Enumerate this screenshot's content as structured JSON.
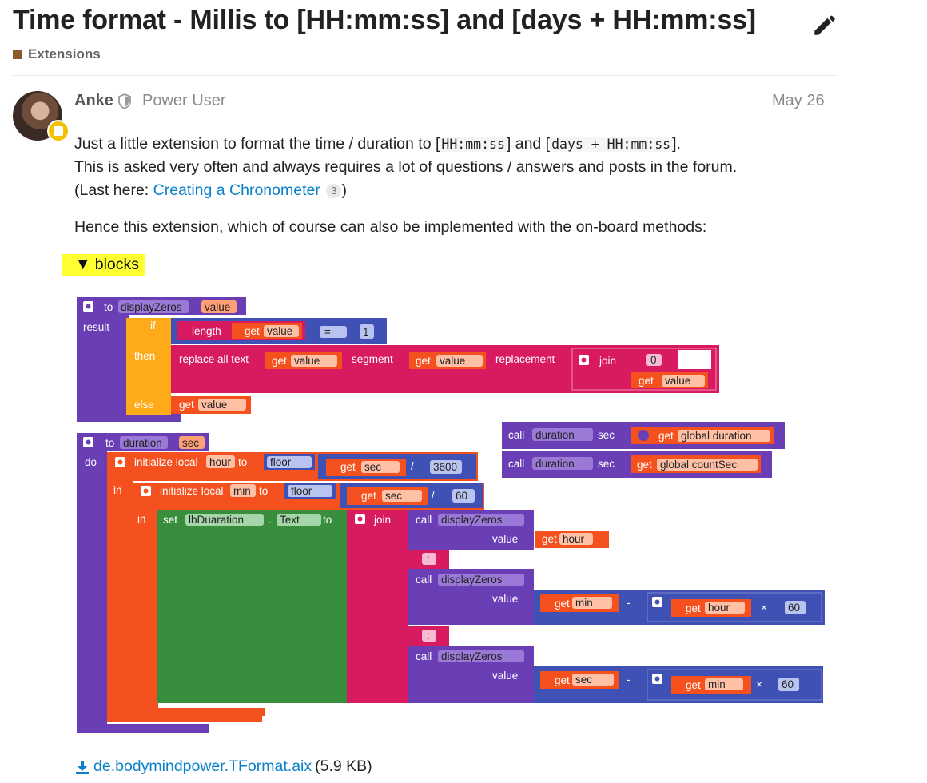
{
  "topic": {
    "title": "Time format - Millis to [HH:mm:ss] and [days + HH:mm:ss]",
    "category": "Extensions"
  },
  "post": {
    "author": "Anke",
    "role": "Power User",
    "date": "May 26",
    "intro_1": "Just a little extension to format the time / duration to [",
    "code_1": "HH:mm:ss",
    "intro_2": "] and [",
    "code_2": "days + HH:mm:ss",
    "intro_3": "].",
    "line_2": "This is asked very often and always requires a lot of questions / answers and posts in the forum.",
    "line_3_pre": "(Last here: ",
    "link_text": "Creating a Chronometer",
    "link_badge": "3",
    "line_3_post": ")",
    "para_2": "Hence this extension, which of course can also be implemented with the on-board methods:",
    "details_summary": "▼  blocks",
    "attachment_name": "de.bodymindpower.TFormat.aix",
    "attachment_size": "(5.9 KB)"
  },
  "blocks": {
    "to": "to",
    "result": "result",
    "if": "if",
    "then": "then",
    "else": "else",
    "do": "do",
    "in": "in",
    "get": "get",
    "call": "call",
    "join": "join",
    "set": "set",
    "floor": "floor",
    "length": "length",
    "segment": "segment",
    "replacement": "replacement",
    "replace_all_text": "replace all text",
    "initialize_local": "initialize local",
    "sec_label": "sec",
    "value_label": "value",
    "dot": ".",
    "display_zeros": "displayZeros",
    "duration": "duration",
    "param_value": "value",
    "param_sec": "sec",
    "var_hour": "hour",
    "var_min": "min",
    "var_sec": "sec",
    "var_value": "value",
    "global_duration": "global duration",
    "global_countsec": "global countSec",
    "component": "lbDuaration",
    "property": "Text",
    "eq": "=",
    "div": "/",
    "minus": "-",
    "times": "×",
    "num_1": "1",
    "num_3600": "3600",
    "num_60": "60",
    "str_0": "0",
    "str_colon": ":"
  },
  "colors": {
    "procedure": "#6a3fb5",
    "control": "#ffab19",
    "text": "#d81b60",
    "variable": "#f4511e",
    "math": "#3f51b5",
    "component": "#388e3c",
    "link": "#0a80c8",
    "category": "#8b5a2b",
    "highlight": "#ffff33"
  }
}
